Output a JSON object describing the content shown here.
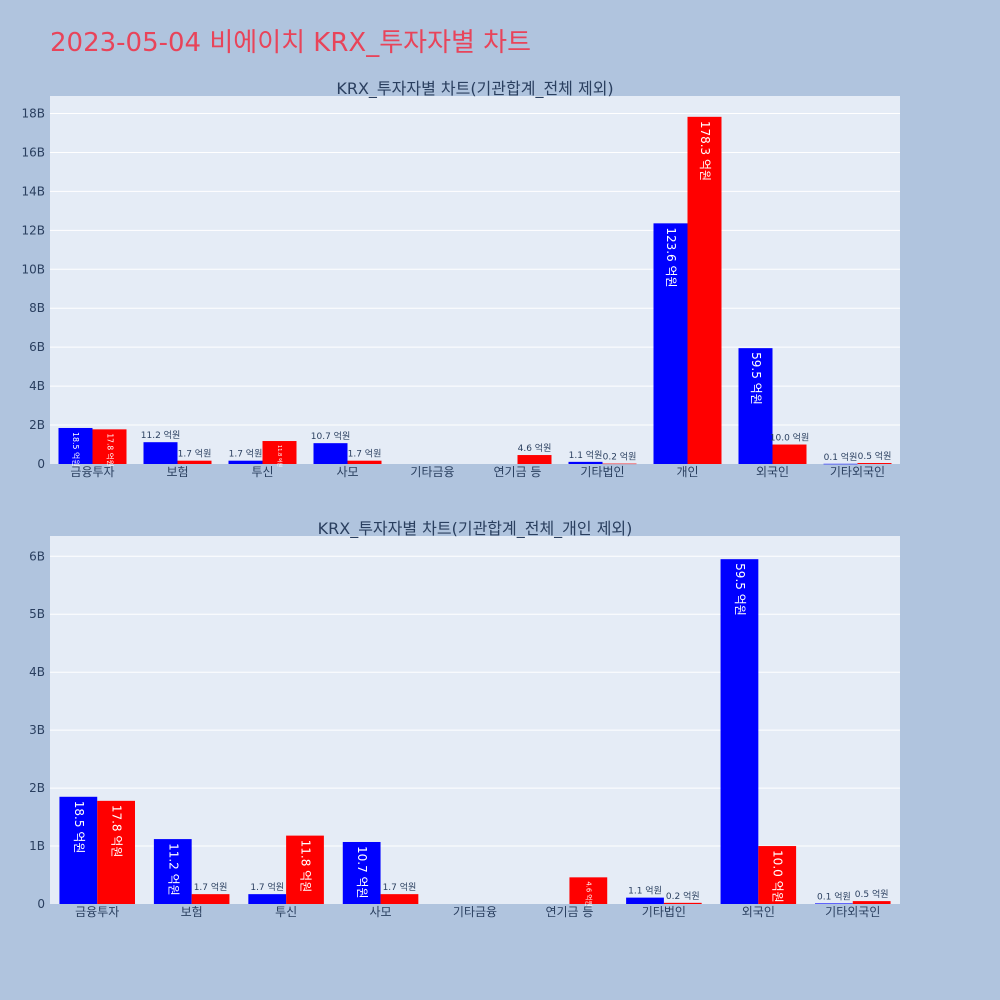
{
  "page": {
    "title": "2023-05-04 비에이치 KRX_투자자별 차트"
  },
  "colors": {
    "series_a": "#0000ff",
    "series_b": "#ff0000",
    "plot_bg": "#e5ecf6",
    "page_bg": "#b0c4de",
    "title": "#e8445a"
  },
  "chart_data": [
    {
      "type": "bar",
      "title": "KRX_투자자별 차트(기관합계_전체 제외)",
      "categories": [
        "금융투자",
        "보험",
        "투신",
        "사모",
        "기타금융",
        "연기금 등",
        "기타법인",
        "개인",
        "외국인",
        "기타외국인"
      ],
      "series": [
        {
          "values": [
            1850000000,
            1120000000,
            170000000,
            1070000000,
            0,
            0,
            110000000,
            12360000000,
            5950000000,
            10000000
          ],
          "labels": [
            "18.5 억원",
            "11.2 억원",
            "1.7 억원",
            "10.7 억원",
            "",
            "",
            "1.1 억원",
            "123.6 억원",
            "59.5 억원",
            "0.1 억원"
          ]
        },
        {
          "values": [
            1780000000,
            170000000,
            1180000000,
            170000000,
            0,
            460000000,
            20000000,
            17830000000,
            1000000000,
            50000000
          ],
          "labels": [
            "17.8 억원",
            "1.7 억원",
            "11.8 억원",
            "1.7 억원",
            "",
            "4.6 억원",
            "0.2 억원",
            "178.3 억원",
            "10.0 억원",
            "0.5 억원"
          ]
        }
      ],
      "ylim": [
        0,
        18900000000
      ],
      "yticks": [
        0,
        2000000000,
        4000000000,
        6000000000,
        8000000000,
        10000000000,
        12000000000,
        14000000000,
        16000000000,
        18000000000
      ],
      "ytick_labels": [
        "0",
        "2B",
        "4B",
        "6B",
        "8B",
        "10B",
        "12B",
        "14B",
        "16B",
        "18B"
      ],
      "grid": true,
      "legend": "none"
    },
    {
      "type": "bar",
      "title": "KRX_투자자별 차트(기관합계_전체_개인 제외)",
      "categories": [
        "금융투자",
        "보험",
        "투신",
        "사모",
        "기타금융",
        "연기금 등",
        "기타법인",
        "외국인",
        "기타외국인"
      ],
      "series": [
        {
          "values": [
            1850000000,
            1120000000,
            170000000,
            1070000000,
            0,
            0,
            110000000,
            5950000000,
            10000000
          ],
          "labels": [
            "18.5 억원",
            "11.2 억원",
            "1.7 억원",
            "10.7 억원",
            "",
            "",
            "1.1 억원",
            "59.5 억원",
            "0.1 억원"
          ]
        },
        {
          "values": [
            1780000000,
            170000000,
            1180000000,
            170000000,
            0,
            460000000,
            20000000,
            1000000000,
            50000000
          ],
          "labels": [
            "17.8 억원",
            "1.7 억원",
            "11.8 억원",
            "1.7 억원",
            "",
            "4.6 억원",
            "0.2 억원",
            "10.0 억원",
            "0.5 억원"
          ]
        }
      ],
      "ylim": [
        0,
        6350000000
      ],
      "yticks": [
        0,
        1000000000,
        2000000000,
        3000000000,
        4000000000,
        5000000000,
        6000000000
      ],
      "ytick_labels": [
        "0",
        "1B",
        "2B",
        "3B",
        "4B",
        "5B",
        "6B"
      ],
      "grid": true,
      "legend": "none"
    }
  ]
}
